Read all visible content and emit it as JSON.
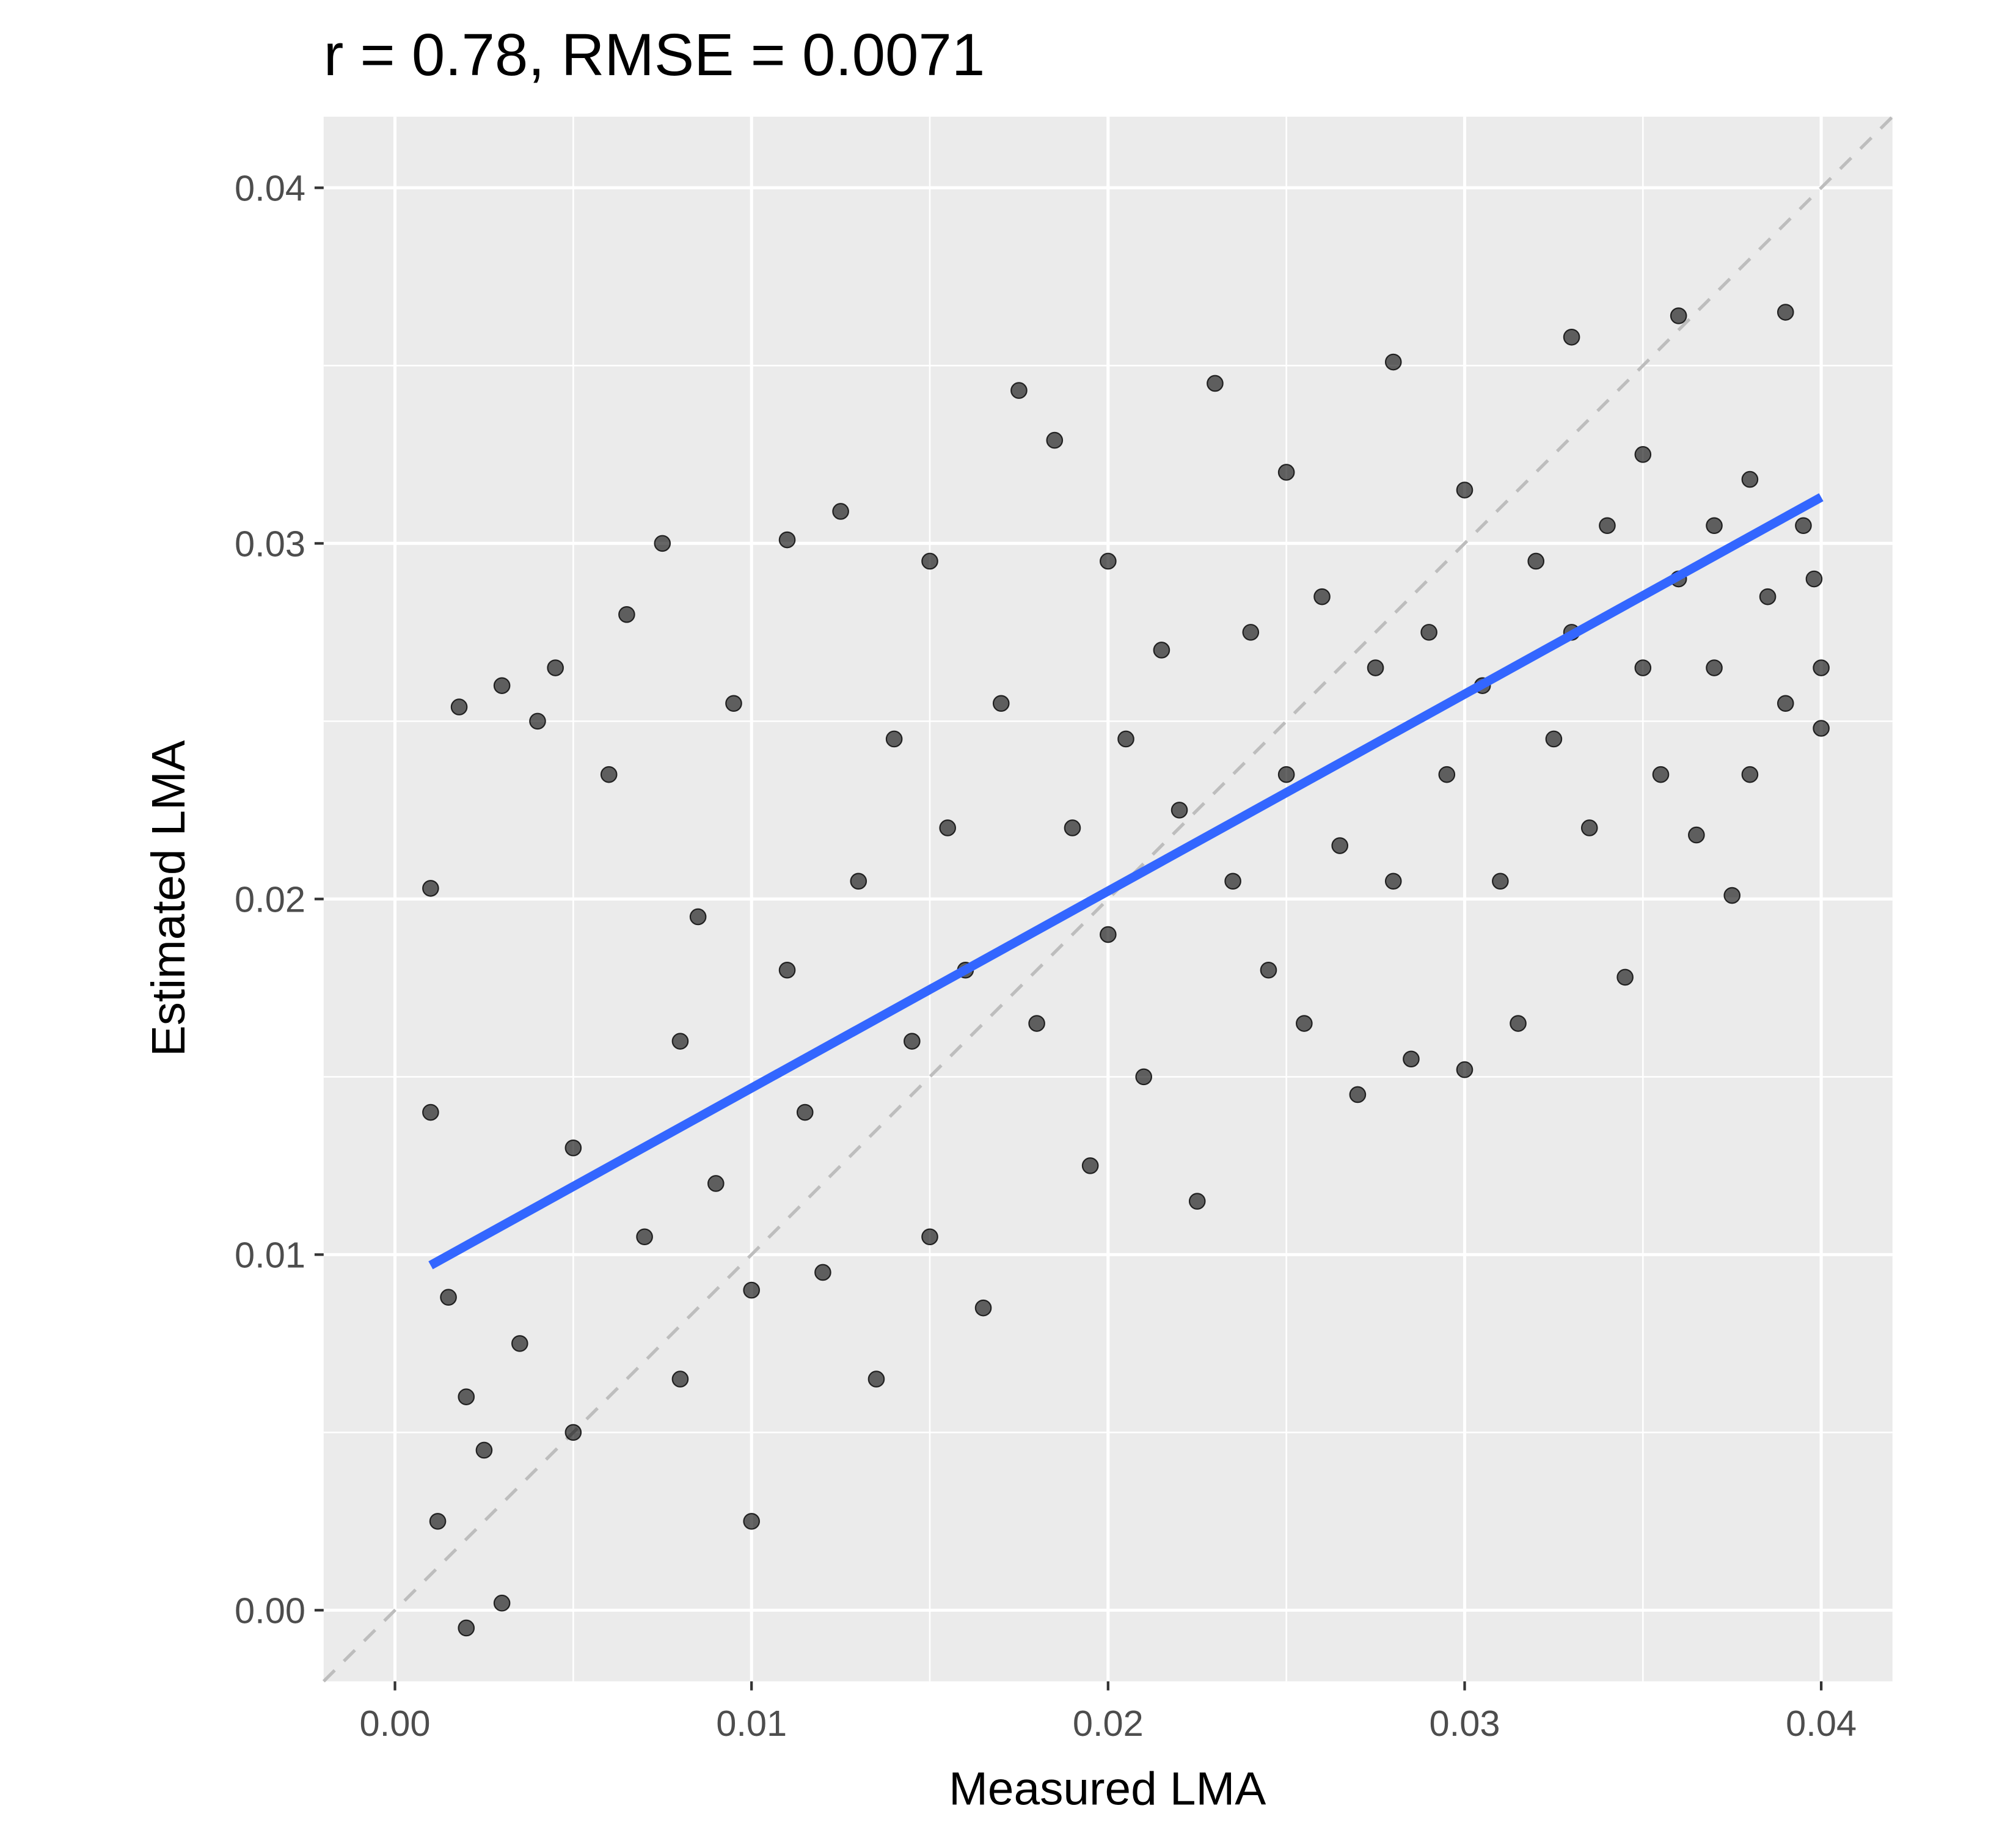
{
  "chart_data": {
    "type": "scatter",
    "title": "r = 0.78, RMSE = 0.0071",
    "x_label": "Measured LMA",
    "y_label": "Estimated LMA",
    "xlim": [
      -0.002,
      0.042
    ],
    "ylim": [
      -0.002,
      0.042
    ],
    "xticks": [
      {
        "value": 0,
        "label": "0.00"
      },
      0.01,
      0.02,
      0.03,
      0.04
    ],
    "yticks": [
      {
        "value": 0,
        "label": "0.00"
      },
      0.01,
      0.02,
      0.03,
      0.04
    ],
    "grid": true,
    "series": [
      {
        "name": "Measured vs estimated",
        "color": "#000000",
        "x": [
          0.001,
          0.001,
          0.0012,
          0.0015,
          0.0018,
          0.002,
          0.002,
          0.0025,
          0.003,
          0.003,
          0.0035,
          0.004,
          0.0045,
          0.005,
          0.005,
          0.006,
          0.0065,
          0.007,
          0.0075,
          0.008,
          0.008,
          0.0085,
          0.009,
          0.0095,
          0.01,
          0.01,
          0.011,
          0.011,
          0.0115,
          0.012,
          0.0125,
          0.013,
          0.0135,
          0.014,
          0.0145,
          0.015,
          0.015,
          0.0155,
          0.016,
          0.0165,
          0.017,
          0.0175,
          0.018,
          0.0185,
          0.019,
          0.0195,
          0.02,
          0.02,
          0.0205,
          0.021,
          0.0215,
          0.022,
          0.0225,
          0.023,
          0.0235,
          0.024,
          0.0245,
          0.025,
          0.025,
          0.0255,
          0.026,
          0.0265,
          0.027,
          0.0275,
          0.028,
          0.028,
          0.0285,
          0.029,
          0.0295,
          0.03,
          0.03,
          0.0305,
          0.031,
          0.0315,
          0.032,
          0.0325,
          0.033,
          0.033,
          0.0335,
          0.034,
          0.0345,
          0.035,
          0.035,
          0.0355,
          0.036,
          0.036,
          0.0365,
          0.037,
          0.037,
          0.0375,
          0.038,
          0.038,
          0.0385,
          0.039,
          0.039,
          0.0395,
          0.04,
          0.04,
          0.0398
        ],
        "values": [
          0.0203,
          0.014,
          0.0025,
          0.0088,
          0.0254,
          -0.0005,
          0.006,
          0.0045,
          0.026,
          0.0002,
          0.0075,
          0.025,
          0.0265,
          0.013,
          0.005,
          0.0235,
          0.028,
          0.0105,
          0.03,
          0.0065,
          0.016,
          0.0195,
          0.012,
          0.0255,
          0.009,
          0.0025,
          0.018,
          0.0301,
          0.014,
          0.0095,
          0.0309,
          0.0205,
          0.0065,
          0.0245,
          0.016,
          0.0295,
          0.0105,
          0.022,
          0.018,
          0.0085,
          0.0255,
          0.0343,
          0.0165,
          0.0329,
          0.022,
          0.0125,
          0.0295,
          0.019,
          0.0245,
          0.015,
          0.027,
          0.0225,
          0.0115,
          0.0345,
          0.0205,
          0.0275,
          0.018,
          0.032,
          0.0235,
          0.0165,
          0.0285,
          0.0215,
          0.0145,
          0.0265,
          0.0351,
          0.0205,
          0.0155,
          0.0275,
          0.0235,
          0.0152,
          0.0315,
          0.026,
          0.0205,
          0.0165,
          0.0295,
          0.0245,
          0.0358,
          0.0275,
          0.022,
          0.0305,
          0.0178,
          0.0265,
          0.0325,
          0.0235,
          0.0364,
          0.029,
          0.0218,
          0.0305,
          0.0265,
          0.0201,
          0.0318,
          0.0235,
          0.0285,
          0.0365,
          0.0255,
          0.0305,
          0.0265,
          0.0248,
          0.029
        ]
      },
      {
        "name": "Linear fit",
        "color": "#3366ff",
        "x": [
          0.001,
          0.04
        ],
        "values": [
          0.0097,
          0.0313
        ]
      }
    ]
  }
}
